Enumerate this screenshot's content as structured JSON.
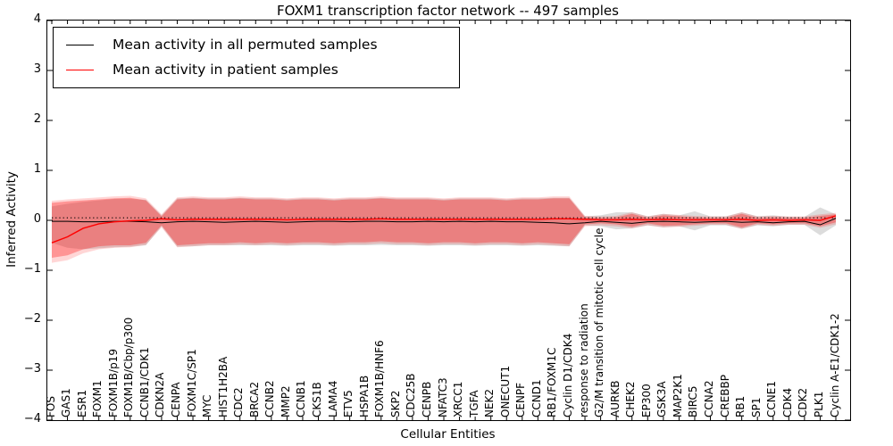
{
  "title": "FOXM1 transcription factor network -- 497 samples",
  "xlabel": "Cellular Entities",
  "ylabel": "Inferred Activity",
  "legend": {
    "items": [
      {
        "label": "Mean activity in all permuted samples",
        "color": "#000000"
      },
      {
        "label": "Mean activity in patient samples",
        "color": "#ff0000"
      }
    ]
  },
  "chart_data": {
    "type": "line",
    "title": "FOXM1 transcription factor network -- 497 samples",
    "xlabel": "Cellular Entities",
    "ylabel": "Inferred Activity",
    "ylim": [
      -4,
      4
    ],
    "yticks": [
      "4",
      "3",
      "2",
      "1",
      "0",
      "−1",
      "−2",
      "−3",
      "−4"
    ],
    "grid": false,
    "legend_position": "upper left",
    "reference_line": {
      "y": 0.05,
      "style": "dotted",
      "color": "#000000"
    },
    "categories": [
      "FOS",
      "GAS1",
      "ESR1",
      "FOXM1",
      "FOXM1B/p19",
      "FOXM1B/Cbp/p300",
      "CCNB1/CDK1",
      "CDKN2A",
      "CENPA",
      "FOXM1C/SP1",
      "MYC",
      "HIST1H2BA",
      "CDC2",
      "BRCA2",
      "CCNB2",
      "MMP2",
      "CCNB1",
      "CKS1B",
      "LAMA4",
      "ETV5",
      "HSPA1B",
      "FOXM1B/HNF6",
      "SKP2",
      "CDC25B",
      "CENPB",
      "NFATC3",
      "XRCC1",
      "TGFA",
      "NEK2",
      "ONECUT1",
      "CENPF",
      "CCND1",
      "RB1/FOXM1C",
      "Cyclin D1/CDK4",
      "response to radiation",
      "G2/M transition of mitotic cell cycle",
      "AURKB",
      "CHEK2",
      "EP300",
      "GSK3A",
      "MAP2K1",
      "BIRC5",
      "CCNA2",
      "CREBBP",
      "RB1",
      "SP1",
      "CCNE1",
      "CDK4",
      "CDK2",
      "PLK1",
      "Cyclin A-E1/CDK1-2"
    ],
    "series": [
      {
        "name": "Mean activity in all permuted samples",
        "color": "#000000",
        "values": [
          -0.02,
          -0.02,
          -0.03,
          -0.03,
          -0.02,
          -0.02,
          -0.03,
          -0.05,
          -0.03,
          -0.02,
          -0.03,
          -0.04,
          -0.03,
          -0.02,
          -0.03,
          -0.04,
          -0.03,
          -0.02,
          -0.02,
          -0.03,
          -0.02,
          -0.02,
          -0.03,
          -0.03,
          -0.02,
          -0.03,
          -0.02,
          -0.03,
          -0.02,
          -0.03,
          -0.03,
          -0.04,
          -0.05,
          -0.07,
          -0.05,
          -0.02,
          -0.04,
          -0.06,
          -0.03,
          -0.02,
          -0.03,
          -0.04,
          -0.03,
          -0.02,
          -0.04,
          -0.03,
          -0.05,
          -0.03,
          -0.02,
          -0.09,
          0.04
        ]
      },
      {
        "name": "Mean activity in patient samples",
        "color": "#ff0000",
        "values": [
          -0.45,
          -0.33,
          -0.16,
          -0.07,
          -0.03,
          -0.01,
          0,
          0.03,
          0.01,
          0.02,
          0.02,
          0.02,
          0.02,
          0.02,
          0.02,
          0.01,
          0.02,
          0.02,
          0.02,
          0.02,
          0.02,
          0.03,
          0.02,
          0.02,
          0.02,
          0.02,
          0.02,
          0.02,
          0.02,
          0.02,
          0.02,
          0.02,
          0.03,
          0.03,
          0.02,
          0.01,
          0.01,
          0.02,
          0.01,
          0.02,
          0.01,
          0.01,
          0.01,
          0.01,
          0.02,
          0,
          0.01,
          0,
          0.01,
          0,
          0.09
        ]
      }
    ],
    "bands": [
      {
        "name": "permuted samples std band",
        "color": "rgba(130,130,130,0.28)",
        "upper": [
          0.28,
          0.33,
          0.37,
          0.4,
          0.43,
          0.43,
          0.41,
          0.1,
          0.44,
          0.45,
          0.44,
          0.44,
          0.45,
          0.44,
          0.44,
          0.42,
          0.44,
          0.44,
          0.42,
          0.44,
          0.44,
          0.45,
          0.44,
          0.44,
          0.44,
          0.42,
          0.44,
          0.44,
          0.44,
          0.42,
          0.44,
          0.44,
          0.45,
          0.45,
          0.08,
          0.1,
          0.16,
          0.16,
          0.08,
          0.13,
          0.1,
          0.18,
          0.08,
          0.08,
          0.16,
          0.08,
          0.1,
          0.07,
          0.07,
          0.26,
          0.12
        ],
        "lower": [
          -0.45,
          -0.55,
          -0.58,
          -0.56,
          -0.54,
          -0.53,
          -0.5,
          -0.12,
          -0.53,
          -0.52,
          -0.5,
          -0.5,
          -0.5,
          -0.5,
          -0.5,
          -0.51,
          -0.5,
          -0.5,
          -0.51,
          -0.5,
          -0.5,
          -0.49,
          -0.5,
          -0.5,
          -0.51,
          -0.5,
          -0.5,
          -0.51,
          -0.5,
          -0.5,
          -0.51,
          -0.5,
          -0.51,
          -0.52,
          -0.1,
          -0.12,
          -0.18,
          -0.16,
          -0.1,
          -0.14,
          -0.12,
          -0.2,
          -0.1,
          -0.1,
          -0.17,
          -0.1,
          -0.12,
          -0.09,
          -0.09,
          -0.3,
          -0.1
        ]
      },
      {
        "name": "patient samples outer band",
        "color": "rgba(255,0,0,0.16)",
        "upper": [
          0.39,
          0.42,
          0.44,
          0.46,
          0.48,
          0.49,
          0.44,
          0.12,
          0.46,
          0.48,
          0.46,
          0.46,
          0.48,
          0.46,
          0.46,
          0.44,
          0.46,
          0.46,
          0.44,
          0.46,
          0.46,
          0.48,
          0.46,
          0.46,
          0.46,
          0.44,
          0.46,
          0.46,
          0.46,
          0.44,
          0.46,
          0.46,
          0.48,
          0.48,
          0.09,
          0.08,
          0.09,
          0.16,
          0.08,
          0.13,
          0.11,
          0.09,
          0.08,
          0.08,
          0.16,
          0.08,
          0.09,
          0.08,
          0.08,
          0.12,
          0.15
        ],
        "lower": [
          -0.85,
          -0.8,
          -0.66,
          -0.58,
          -0.55,
          -0.54,
          -0.49,
          -0.14,
          -0.54,
          -0.52,
          -0.5,
          -0.5,
          -0.48,
          -0.5,
          -0.48,
          -0.5,
          -0.48,
          -0.48,
          -0.5,
          -0.48,
          -0.48,
          -0.46,
          -0.48,
          -0.48,
          -0.5,
          -0.48,
          -0.48,
          -0.5,
          -0.48,
          -0.48,
          -0.5,
          -0.48,
          -0.5,
          -0.52,
          -0.12,
          -0.1,
          -0.12,
          -0.16,
          -0.1,
          -0.14,
          -0.13,
          -0.11,
          -0.09,
          -0.09,
          -0.17,
          -0.09,
          -0.11,
          -0.09,
          -0.09,
          -0.15,
          -0.08
        ]
      },
      {
        "name": "patient samples std band",
        "color": "rgba(255,0,0,0.30)",
        "upper": [
          0.35,
          0.38,
          0.4,
          0.42,
          0.44,
          0.45,
          0.4,
          0.08,
          0.42,
          0.44,
          0.42,
          0.42,
          0.44,
          0.42,
          0.42,
          0.4,
          0.42,
          0.42,
          0.4,
          0.42,
          0.42,
          0.44,
          0.42,
          0.42,
          0.42,
          0.4,
          0.42,
          0.42,
          0.42,
          0.4,
          0.42,
          0.42,
          0.44,
          0.44,
          0.06,
          0.05,
          0.06,
          0.13,
          0.05,
          0.1,
          0.08,
          0.06,
          0.05,
          0.05,
          0.13,
          0.05,
          0.06,
          0.05,
          0.05,
          0.09,
          0.12
        ],
        "lower": [
          -0.75,
          -0.7,
          -0.58,
          -0.52,
          -0.5,
          -0.5,
          -0.45,
          -0.1,
          -0.5,
          -0.48,
          -0.46,
          -0.46,
          -0.44,
          -0.46,
          -0.44,
          -0.46,
          -0.44,
          -0.44,
          -0.46,
          -0.44,
          -0.44,
          -0.42,
          -0.44,
          -0.44,
          -0.46,
          -0.44,
          -0.44,
          -0.46,
          -0.44,
          -0.44,
          -0.46,
          -0.44,
          -0.46,
          -0.48,
          -0.08,
          -0.06,
          -0.08,
          -0.13,
          -0.06,
          -0.11,
          -0.1,
          -0.08,
          -0.06,
          -0.06,
          -0.14,
          -0.06,
          -0.08,
          -0.06,
          -0.06,
          -0.12,
          -0.04
        ]
      }
    ]
  }
}
